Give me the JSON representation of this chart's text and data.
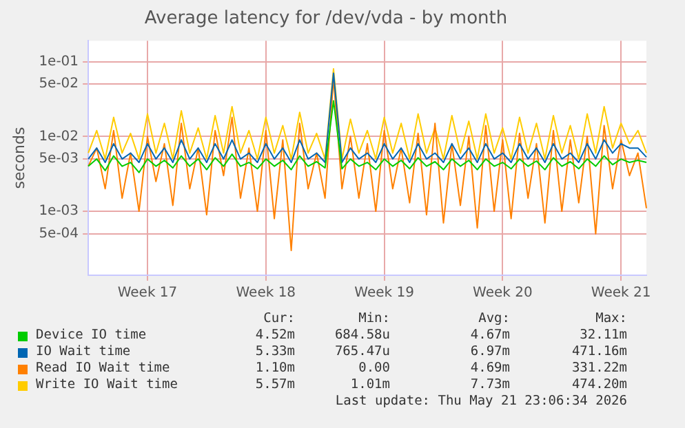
{
  "chart_data": {
    "type": "line",
    "title": "Average latency for /dev/vda - by month",
    "ylabel": "seconds",
    "categories": [
      null,
      null,
      null,
      null,
      null,
      null,
      null,
      "Week 17",
      null,
      null,
      null,
      null,
      null,
      null,
      null,
      null,
      null,
      null,
      null,
      null,
      null,
      "Week 18",
      null,
      null,
      null,
      null,
      null,
      null,
      null,
      null,
      null,
      null,
      null,
      null,
      null,
      "Week 19",
      null,
      null,
      null,
      null,
      null,
      null,
      null,
      null,
      null,
      null,
      null,
      null,
      null,
      "Week 20",
      null,
      null,
      null,
      null,
      null,
      null,
      null,
      null,
      null,
      null,
      null,
      null,
      null,
      "Week 21",
      null,
      null,
      null
    ],
    "series": [
      {
        "name": "Device IO time",
        "color": "#00cc00",
        "values": [
          0.004,
          0.005,
          0.0035,
          0.0055,
          0.004,
          0.0045,
          0.0033,
          0.005,
          0.004,
          0.0048,
          0.0038,
          0.0055,
          0.004,
          0.005,
          0.0036,
          0.0052,
          0.004,
          0.0058,
          0.004,
          0.0045,
          0.0037,
          0.005,
          0.004,
          0.0048,
          0.0036,
          0.0055,
          0.004,
          0.0046,
          0.0038,
          0.03,
          0.0037,
          0.005,
          0.004,
          0.0045,
          0.0036,
          0.005,
          0.004,
          0.0048,
          0.0037,
          0.0052,
          0.004,
          0.0046,
          0.0036,
          0.005,
          0.004,
          0.0048,
          0.0036,
          0.005,
          0.004,
          0.0045,
          0.0037,
          0.005,
          0.004,
          0.0047,
          0.0036,
          0.0052,
          0.004,
          0.0046,
          0.0037,
          0.005,
          0.004,
          0.0055,
          0.0042,
          0.005,
          0.0045,
          0.0048,
          0.0045
        ]
      },
      {
        "name": "IO Wait time",
        "color": "#0066b3",
        "values": [
          0.005,
          0.007,
          0.0045,
          0.008,
          0.005,
          0.006,
          0.0045,
          0.008,
          0.005,
          0.007,
          0.0045,
          0.009,
          0.005,
          0.007,
          0.0045,
          0.008,
          0.005,
          0.009,
          0.005,
          0.006,
          0.0045,
          0.008,
          0.005,
          0.007,
          0.0045,
          0.009,
          0.005,
          0.006,
          0.0045,
          0.07,
          0.0045,
          0.007,
          0.005,
          0.006,
          0.0045,
          0.008,
          0.005,
          0.007,
          0.0045,
          0.008,
          0.005,
          0.006,
          0.0045,
          0.008,
          0.005,
          0.007,
          0.0045,
          0.008,
          0.005,
          0.006,
          0.0045,
          0.008,
          0.005,
          0.007,
          0.0045,
          0.008,
          0.005,
          0.006,
          0.0045,
          0.008,
          0.005,
          0.009,
          0.006,
          0.008,
          0.007,
          0.007,
          0.0053
        ]
      },
      {
        "name": "Read IO Wait time",
        "color": "#ff8000",
        "values": [
          0.004,
          0.007,
          0.002,
          0.012,
          0.0015,
          0.006,
          0.001,
          0.01,
          0.0025,
          0.008,
          0.0012,
          0.015,
          0.002,
          0.007,
          0.0009,
          0.012,
          0.003,
          0.018,
          0.0015,
          0.007,
          0.001,
          0.012,
          0.0008,
          0.009,
          0.0003,
          0.015,
          0.002,
          0.006,
          0.0015,
          0.06,
          0.002,
          0.01,
          0.0015,
          0.008,
          0.001,
          0.012,
          0.002,
          0.007,
          0.0013,
          0.011,
          0.0009,
          0.015,
          0.0007,
          0.008,
          0.0012,
          0.01,
          0.0006,
          0.014,
          0.001,
          0.009,
          0.0008,
          0.011,
          0.0015,
          0.008,
          0.0007,
          0.012,
          0.001,
          0.009,
          0.0013,
          0.01,
          0.0005,
          0.014,
          0.002,
          0.009,
          0.003,
          0.006,
          0.0011
        ]
      },
      {
        "name": "Write IO Wait time",
        "color": "#ffcc00",
        "values": [
          0.006,
          0.012,
          0.005,
          0.018,
          0.006,
          0.011,
          0.005,
          0.02,
          0.006,
          0.015,
          0.005,
          0.022,
          0.006,
          0.013,
          0.005,
          0.019,
          0.006,
          0.025,
          0.006,
          0.012,
          0.005,
          0.018,
          0.006,
          0.014,
          0.005,
          0.021,
          0.006,
          0.011,
          0.005,
          0.08,
          0.005,
          0.017,
          0.006,
          0.012,
          0.005,
          0.018,
          0.006,
          0.015,
          0.005,
          0.02,
          0.006,
          0.013,
          0.005,
          0.019,
          0.006,
          0.016,
          0.005,
          0.02,
          0.006,
          0.013,
          0.005,
          0.018,
          0.006,
          0.015,
          0.005,
          0.019,
          0.006,
          0.014,
          0.005,
          0.02,
          0.006,
          0.025,
          0.007,
          0.015,
          0.008,
          0.012,
          0.006
        ]
      }
    ],
    "log": "y",
    "ylim": [
      0.00014,
      0.19
    ],
    "yticks": [
      {
        "value": 0.0005,
        "label": "5e-04"
      },
      {
        "value": 0.001,
        "label": "1e-03"
      },
      {
        "value": 0.005,
        "label": "5e-03"
      },
      {
        "value": 0.01,
        "label": "1e-02"
      },
      {
        "value": 0.05,
        "label": "5e-02"
      },
      {
        "value": 0.1,
        "label": "1e-01"
      }
    ],
    "grid": true,
    "legend": "bottom",
    "marker": "none",
    "line_style": "solid",
    "annotations": [
      "Cur:",
      "Min:",
      "Avg:",
      "Max:",
      "4.52m",
      "684.58u",
      "4.67m",
      "32.11m",
      "5.33m",
      "765.47u",
      "6.97m",
      "471.16m",
      "1.10m",
      "0.00",
      "4.69m",
      "331.22m",
      "5.57m",
      "1.01m",
      "7.73m",
      "474.20m",
      "Last update: Thu May 21 23:06:34 2026"
    ]
  }
}
